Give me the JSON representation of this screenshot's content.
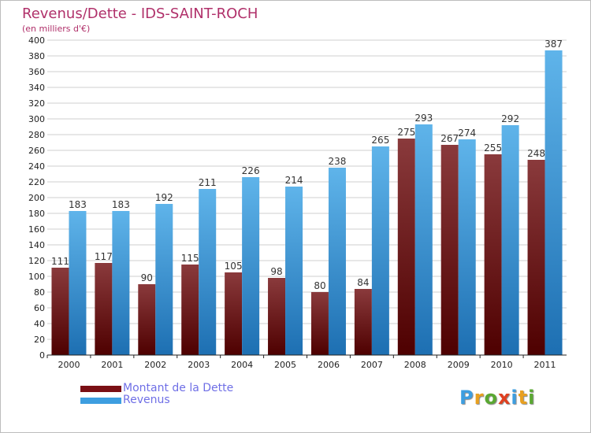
{
  "header": {
    "title": "Revenus/Dette - IDS-SAINT-ROCH",
    "subtitle": "(en milliers d'€)"
  },
  "legend": [
    {
      "label": "Montant de la Dette",
      "color": "#7a0f14"
    },
    {
      "label": "Revenus",
      "color": "#3d9ee0"
    }
  ],
  "logo": {
    "text": "Proxiti",
    "letter_colors": [
      "#3d9ee0",
      "#e8a020",
      "#5aa832",
      "#e04020",
      "#3d9ee0",
      "#e8a020",
      "#5aa832"
    ]
  },
  "colors": {
    "debt_top": "#8a3a3c",
    "debt_bottom": "#4e0000",
    "revenue_top": "#5fb4ea",
    "revenue_bottom": "#1d6fb2",
    "grid": "#cfcfcf",
    "axis_text": "#222222",
    "label_text": "#333333"
  },
  "chart_data": {
    "type": "bar",
    "title": "Revenus/Dette - IDS-SAINT-ROCH",
    "subtitle": "(en milliers d'€)",
    "categories": [
      "2000",
      "2001",
      "2002",
      "2003",
      "2004",
      "2005",
      "2006",
      "2007",
      "2008",
      "2009",
      "2010",
      "2011"
    ],
    "series": [
      {
        "name": "Montant de la Dette",
        "values": [
          111,
          117,
          90,
          115,
          105,
          98,
          80,
          84,
          275,
          267,
          255,
          248
        ]
      },
      {
        "name": "Revenus",
        "values": [
          183,
          183,
          192,
          211,
          226,
          214,
          238,
          265,
          293,
          274,
          292,
          387
        ]
      }
    ],
    "ylim": [
      0,
      400
    ],
    "yticks": [
      0,
      20,
      40,
      60,
      80,
      100,
      120,
      140,
      160,
      180,
      200,
      220,
      240,
      260,
      280,
      300,
      320,
      340,
      360,
      380,
      400
    ],
    "grid": true,
    "legend_position": "bottom-left"
  }
}
